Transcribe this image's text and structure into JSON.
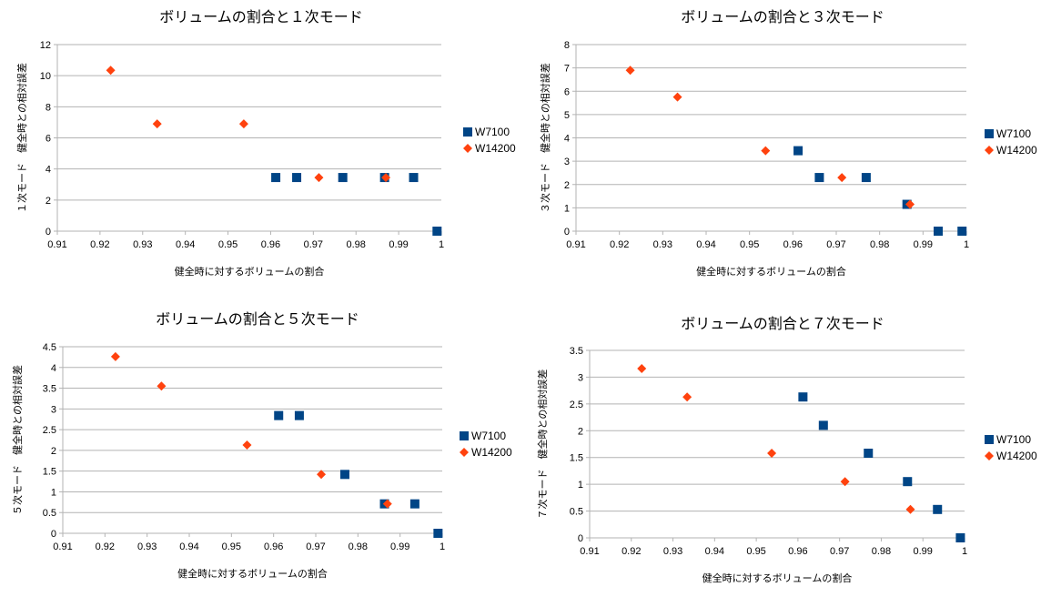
{
  "colors": {
    "W7100": "#004586",
    "W14200": "#ff420e",
    "grid": "#b3b3b3"
  },
  "chart_data": [
    {
      "type": "scatter",
      "title": "ボリュームの割合と１次モード",
      "xlabel": "健全時に対するボリュームの割合",
      "ylabel": "１次モード　健全時との相対誤差",
      "xlim": [
        0.91,
        1
      ],
      "ylim": [
        0,
        12
      ],
      "xticks": [
        "0.91",
        "0.92",
        "0.93",
        "0.94",
        "0.95",
        "0.96",
        "0.97",
        "0.98",
        "0.99",
        "1"
      ],
      "yticks": [
        "0",
        "2",
        "4",
        "6",
        "8",
        "10",
        "12"
      ],
      "grid": true,
      "legend_position": "right",
      "series": [
        {
          "name": "W7100",
          "marker": "square",
          "x": [
            0.9612,
            0.9661,
            0.9769,
            0.9867,
            0.9935,
            0.999
          ],
          "y": [
            3.45,
            3.45,
            3.45,
            3.45,
            3.45,
            0
          ]
        },
        {
          "name": "W14200",
          "marker": "diamond",
          "x": [
            0.9225,
            0.9334,
            0.9537,
            0.9713,
            0.987
          ],
          "y": [
            10.35,
            6.9,
            6.9,
            3.45,
            3.45
          ]
        }
      ]
    },
    {
      "type": "scatter",
      "title": "ボリュームの割合と３次モード",
      "xlabel": "健全時に対するボリュームの割合",
      "ylabel": "３次モード　健全時との相対誤差",
      "xlim": [
        0.91,
        1
      ],
      "ylim": [
        0,
        8
      ],
      "xticks": [
        "0.91",
        "0.92",
        "0.93",
        "0.94",
        "0.95",
        "0.96",
        "0.97",
        "0.98",
        "0.99",
        "1"
      ],
      "yticks": [
        "0",
        "1",
        "2",
        "3",
        "4",
        "5",
        "6",
        "7",
        "8"
      ],
      "grid": true,
      "legend_position": "right",
      "series": [
        {
          "name": "W7100",
          "marker": "square",
          "x": [
            0.9612,
            0.9661,
            0.9769,
            0.9863,
            0.9935,
            0.999
          ],
          "y": [
            3.45,
            2.3,
            2.3,
            1.15,
            0,
            0
          ]
        },
        {
          "name": "W14200",
          "marker": "diamond",
          "x": [
            0.9225,
            0.9334,
            0.9537,
            0.9713,
            0.987
          ],
          "y": [
            6.9,
            5.75,
            3.45,
            2.3,
            1.15
          ]
        }
      ]
    },
    {
      "type": "scatter",
      "title": "ボリュームの割合と５次モード",
      "xlabel": "健全時に対するボリュームの割合",
      "ylabel": "５次モード　健全時との相対誤差",
      "xlim": [
        0.91,
        1
      ],
      "ylim": [
        0,
        4.5
      ],
      "xticks": [
        "0.91",
        "0.92",
        "0.93",
        "0.94",
        "0.95",
        "0.96",
        "0.97",
        "0.98",
        "0.99",
        "1"
      ],
      "yticks": [
        "0",
        "0.5",
        "1",
        "1.5",
        "2",
        "2.5",
        "3",
        "3.5",
        "4",
        "4.5"
      ],
      "grid": true,
      "legend_position": "right",
      "series": [
        {
          "name": "W7100",
          "marker": "square",
          "x": [
            0.9612,
            0.9661,
            0.9769,
            0.9863,
            0.9935,
            0.999
          ],
          "y": [
            2.84,
            2.84,
            1.42,
            0.71,
            0.71,
            0
          ]
        },
        {
          "name": "W14200",
          "marker": "diamond",
          "x": [
            0.9225,
            0.9334,
            0.9537,
            0.9713,
            0.987
          ],
          "y": [
            4.26,
            3.55,
            2.13,
            1.42,
            0.71
          ]
        }
      ]
    },
    {
      "type": "scatter",
      "title": "ボリュームの割合と７次モード",
      "xlabel": "健全時に対するボリュームの割合",
      "ylabel": "７次モード　健全時との相対誤差",
      "xlim": [
        0.91,
        1
      ],
      "ylim": [
        0,
        3.5
      ],
      "xticks": [
        "0.91",
        "0.92",
        "0.93",
        "0.94",
        "0.95",
        "0.96",
        "0.97",
        "0.98",
        "0.99",
        "1"
      ],
      "yticks": [
        "0",
        "0.5",
        "1",
        "1.5",
        "2",
        "2.5",
        "3",
        "3.5"
      ],
      "grid": true,
      "legend_position": "right",
      "series": [
        {
          "name": "W7100",
          "marker": "square",
          "x": [
            0.9612,
            0.9661,
            0.9769,
            0.9863,
            0.9935,
            0.999
          ],
          "y": [
            2.63,
            2.1,
            1.58,
            1.05,
            0.53,
            0
          ]
        },
        {
          "name": "W14200",
          "marker": "diamond",
          "x": [
            0.9225,
            0.9334,
            0.9537,
            0.9713,
            0.987
          ],
          "y": [
            3.16,
            2.63,
            1.58,
            1.05,
            0.53
          ]
        }
      ]
    }
  ]
}
